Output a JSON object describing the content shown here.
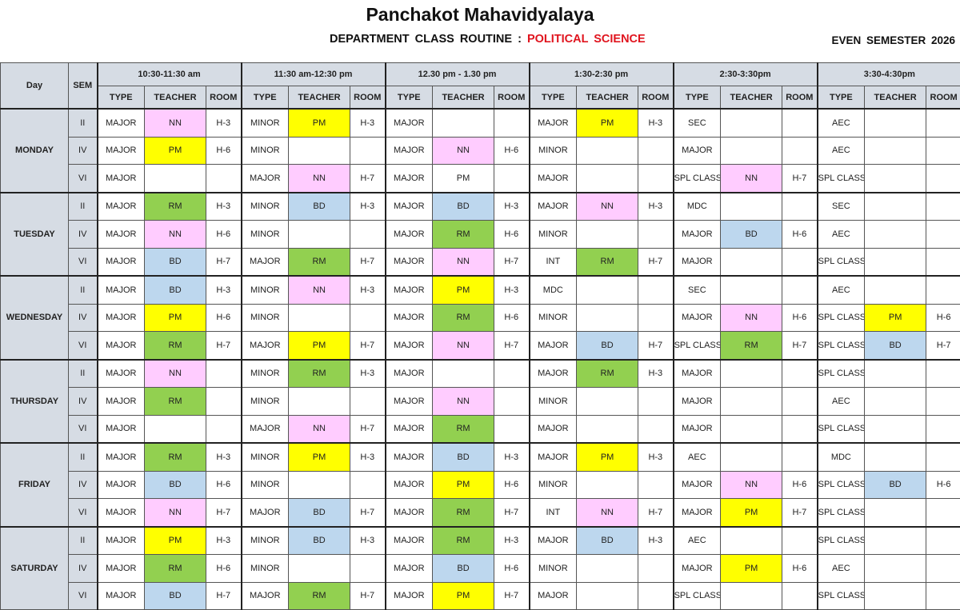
{
  "header": {
    "title": "Panchakot Mahavidyalaya",
    "subtitle_prefix": "DEPARTMENT  CLASS  ROUTINE : ",
    "department": "POLITICAL SCIENCE",
    "semester": "EVEN SEMESTER  2026"
  },
  "colors": {
    "NN": "#ffccff",
    "PM": "#ffff00",
    "RM": "#92d050",
    "BD": "#bdd7ee",
    "department": "#e0141e",
    "header_bg": "#d6dce4"
  },
  "table": {
    "day_header": "Day",
    "sem_header": "SEM",
    "sub_headers": [
      "TYPE",
      "TEACHER",
      "ROOM"
    ],
    "time_slots": [
      "10:30-11:30 am",
      "11:30 am-12:30 pm",
      "12.30 pm - 1.30 pm",
      "1:30-2:30 pm",
      "2:30-3:30pm",
      "3:30-4:30pm"
    ],
    "days": [
      {
        "name": "MONDAY",
        "rows": [
          {
            "sem": "II",
            "slots": [
              [
                "MAJOR",
                "NN",
                "H-3"
              ],
              [
                "MINOR",
                "PM",
                "H-3"
              ],
              [
                "MAJOR",
                "",
                ""
              ],
              [
                "MAJOR",
                "PM",
                "H-3"
              ],
              [
                "SEC",
                "",
                ""
              ],
              [
                "AEC",
                "",
                ""
              ]
            ]
          },
          {
            "sem": "IV",
            "slots": [
              [
                "MAJOR",
                "PM",
                "H-6"
              ],
              [
                "MINOR",
                "",
                ""
              ],
              [
                "MAJOR",
                "NN",
                "H-6"
              ],
              [
                "MINOR",
                "",
                ""
              ],
              [
                "MAJOR",
                "",
                ""
              ],
              [
                "AEC",
                "",
                ""
              ]
            ]
          },
          {
            "sem": "VI",
            "slots": [
              [
                "MAJOR",
                "",
                ""
              ],
              [
                "MAJOR",
                "NN",
                "H-7"
              ],
              [
                "MAJOR",
                "PM",
                ""
              ],
              [
                "MAJOR",
                "",
                ""
              ],
              [
                "SPL CLASS",
                "NN",
                "H-7"
              ],
              [
                "SPL CLASS",
                "",
                ""
              ]
            ]
          }
        ]
      },
      {
        "name": "TUESDAY",
        "rows": [
          {
            "sem": "II",
            "slots": [
              [
                "MAJOR",
                "RM",
                "H-3"
              ],
              [
                "MINOR",
                "BD",
                "H-3"
              ],
              [
                "MAJOR",
                "BD",
                "H-3"
              ],
              [
                "MAJOR",
                "NN",
                "H-3"
              ],
              [
                "MDC",
                "",
                ""
              ],
              [
                "SEC",
                "",
                ""
              ]
            ]
          },
          {
            "sem": "IV",
            "slots": [
              [
                "MAJOR",
                "NN",
                "H-6"
              ],
              [
                "MINOR",
                "",
                ""
              ],
              [
                "MAJOR",
                "RM",
                "H-6"
              ],
              [
                "MINOR",
                "",
                ""
              ],
              [
                "MAJOR",
                "BD",
                "H-6"
              ],
              [
                "AEC",
                "",
                ""
              ]
            ]
          },
          {
            "sem": "VI",
            "slots": [
              [
                "MAJOR",
                "BD",
                "H-7"
              ],
              [
                "MAJOR",
                "RM",
                "H-7"
              ],
              [
                "MAJOR",
                "NN",
                "H-7"
              ],
              [
                "INT",
                "RM",
                "H-7"
              ],
              [
                "MAJOR",
                "",
                ""
              ],
              [
                "SPL CLASS",
                "",
                ""
              ]
            ]
          }
        ]
      },
      {
        "name": "WEDNESDAY",
        "rows": [
          {
            "sem": "II",
            "slots": [
              [
                "MAJOR",
                "BD",
                "H-3"
              ],
              [
                "MINOR",
                "NN",
                "H-3"
              ],
              [
                "MAJOR",
                "PM",
                "H-3"
              ],
              [
                "MDC",
                "",
                ""
              ],
              [
                "SEC",
                "",
                ""
              ],
              [
                "AEC",
                "",
                ""
              ]
            ]
          },
          {
            "sem": "IV",
            "slots": [
              [
                "MAJOR",
                "PM",
                "H-6"
              ],
              [
                "MINOR",
                "",
                ""
              ],
              [
                "MAJOR",
                "RM",
                "H-6"
              ],
              [
                "MINOR",
                "",
                ""
              ],
              [
                "MAJOR",
                "NN",
                "H-6"
              ],
              [
                "SPL CLASS",
                "PM",
                "H-6"
              ]
            ]
          },
          {
            "sem": "VI",
            "slots": [
              [
                "MAJOR",
                "RM",
                "H-7"
              ],
              [
                "MAJOR",
                "PM",
                "H-7"
              ],
              [
                "MAJOR",
                "NN",
                "H-7"
              ],
              [
                "MAJOR",
                "BD",
                "H-7"
              ],
              [
                "SPL CLASS",
                "RM",
                "H-7"
              ],
              [
                "SPL CLASS",
                "BD",
                "H-7"
              ]
            ]
          }
        ]
      },
      {
        "name": "THURSDAY",
        "rows": [
          {
            "sem": "II",
            "slots": [
              [
                "MAJOR",
                "NN",
                ""
              ],
              [
                "MINOR",
                "RM",
                "H-3"
              ],
              [
                "MAJOR",
                "",
                ""
              ],
              [
                "MAJOR",
                "RM",
                "H-3"
              ],
              [
                "MAJOR",
                "",
                ""
              ],
              [
                "SPL CLASS",
                "",
                ""
              ]
            ]
          },
          {
            "sem": "IV",
            "slots": [
              [
                "MAJOR",
                "RM",
                ""
              ],
              [
                "MINOR",
                "",
                ""
              ],
              [
                "MAJOR",
                "NN",
                ""
              ],
              [
                "MINOR",
                "",
                ""
              ],
              [
                "MAJOR",
                "",
                ""
              ],
              [
                "AEC",
                "",
                ""
              ]
            ]
          },
          {
            "sem": "VI",
            "slots": [
              [
                "MAJOR",
                "",
                ""
              ],
              [
                "MAJOR",
                "NN",
                "H-7"
              ],
              [
                "MAJOR",
                "RM",
                ""
              ],
              [
                "MAJOR",
                "",
                ""
              ],
              [
                "MAJOR",
                "",
                ""
              ],
              [
                "SPL CLASS",
                "",
                ""
              ]
            ]
          }
        ]
      },
      {
        "name": "FRIDAY",
        "rows": [
          {
            "sem": "II",
            "slots": [
              [
                "MAJOR",
                "RM",
                "H-3"
              ],
              [
                "MINOR",
                "PM",
                "H-3"
              ],
              [
                "MAJOR",
                "BD",
                "H-3"
              ],
              [
                "MAJOR",
                "PM",
                "H-3"
              ],
              [
                "AEC",
                "",
                ""
              ],
              [
                "MDC",
                "",
                ""
              ]
            ]
          },
          {
            "sem": "IV",
            "slots": [
              [
                "MAJOR",
                "BD",
                "H-6"
              ],
              [
                "MINOR",
                "",
                ""
              ],
              [
                "MAJOR",
                "PM",
                "H-6"
              ],
              [
                "MINOR",
                "",
                ""
              ],
              [
                "MAJOR",
                "NN",
                "H-6"
              ],
              [
                "SPL CLASS",
                "BD",
                "H-6"
              ]
            ]
          },
          {
            "sem": "VI",
            "slots": [
              [
                "MAJOR",
                "NN",
                "H-7"
              ],
              [
                "MAJOR",
                "BD",
                "H-7"
              ],
              [
                "MAJOR",
                "RM",
                "H-7"
              ],
              [
                "INT",
                "NN",
                "H-7"
              ],
              [
                "MAJOR",
                "PM",
                "H-7"
              ],
              [
                "SPL CLASS",
                "",
                ""
              ]
            ]
          }
        ]
      },
      {
        "name": "SATURDAY",
        "rows": [
          {
            "sem": "II",
            "slots": [
              [
                "MAJOR",
                "PM",
                "H-3"
              ],
              [
                "MINOR",
                "BD",
                "H-3"
              ],
              [
                "MAJOR",
                "RM",
                "H-3"
              ],
              [
                "MAJOR",
                "BD",
                "H-3"
              ],
              [
                "AEC",
                "",
                ""
              ],
              [
                "SPL CLASS",
                "",
                ""
              ]
            ]
          },
          {
            "sem": "IV",
            "slots": [
              [
                "MAJOR",
                "RM",
                "H-6"
              ],
              [
                "MINOR",
                "",
                ""
              ],
              [
                "MAJOR",
                "BD",
                "H-6"
              ],
              [
                "MINOR",
                "",
                ""
              ],
              [
                "MAJOR",
                "PM",
                "H-6"
              ],
              [
                "AEC",
                "",
                ""
              ]
            ]
          },
          {
            "sem": "VI",
            "slots": [
              [
                "MAJOR",
                "BD",
                "H-7"
              ],
              [
                "MAJOR",
                "RM",
                "H-7"
              ],
              [
                "MAJOR",
                "PM",
                "H-7"
              ],
              [
                "MAJOR",
                "",
                ""
              ],
              [
                "SPL CLASS",
                "",
                ""
              ],
              [
                "SPL CLASS",
                "",
                ""
              ]
            ]
          }
        ]
      }
    ]
  }
}
